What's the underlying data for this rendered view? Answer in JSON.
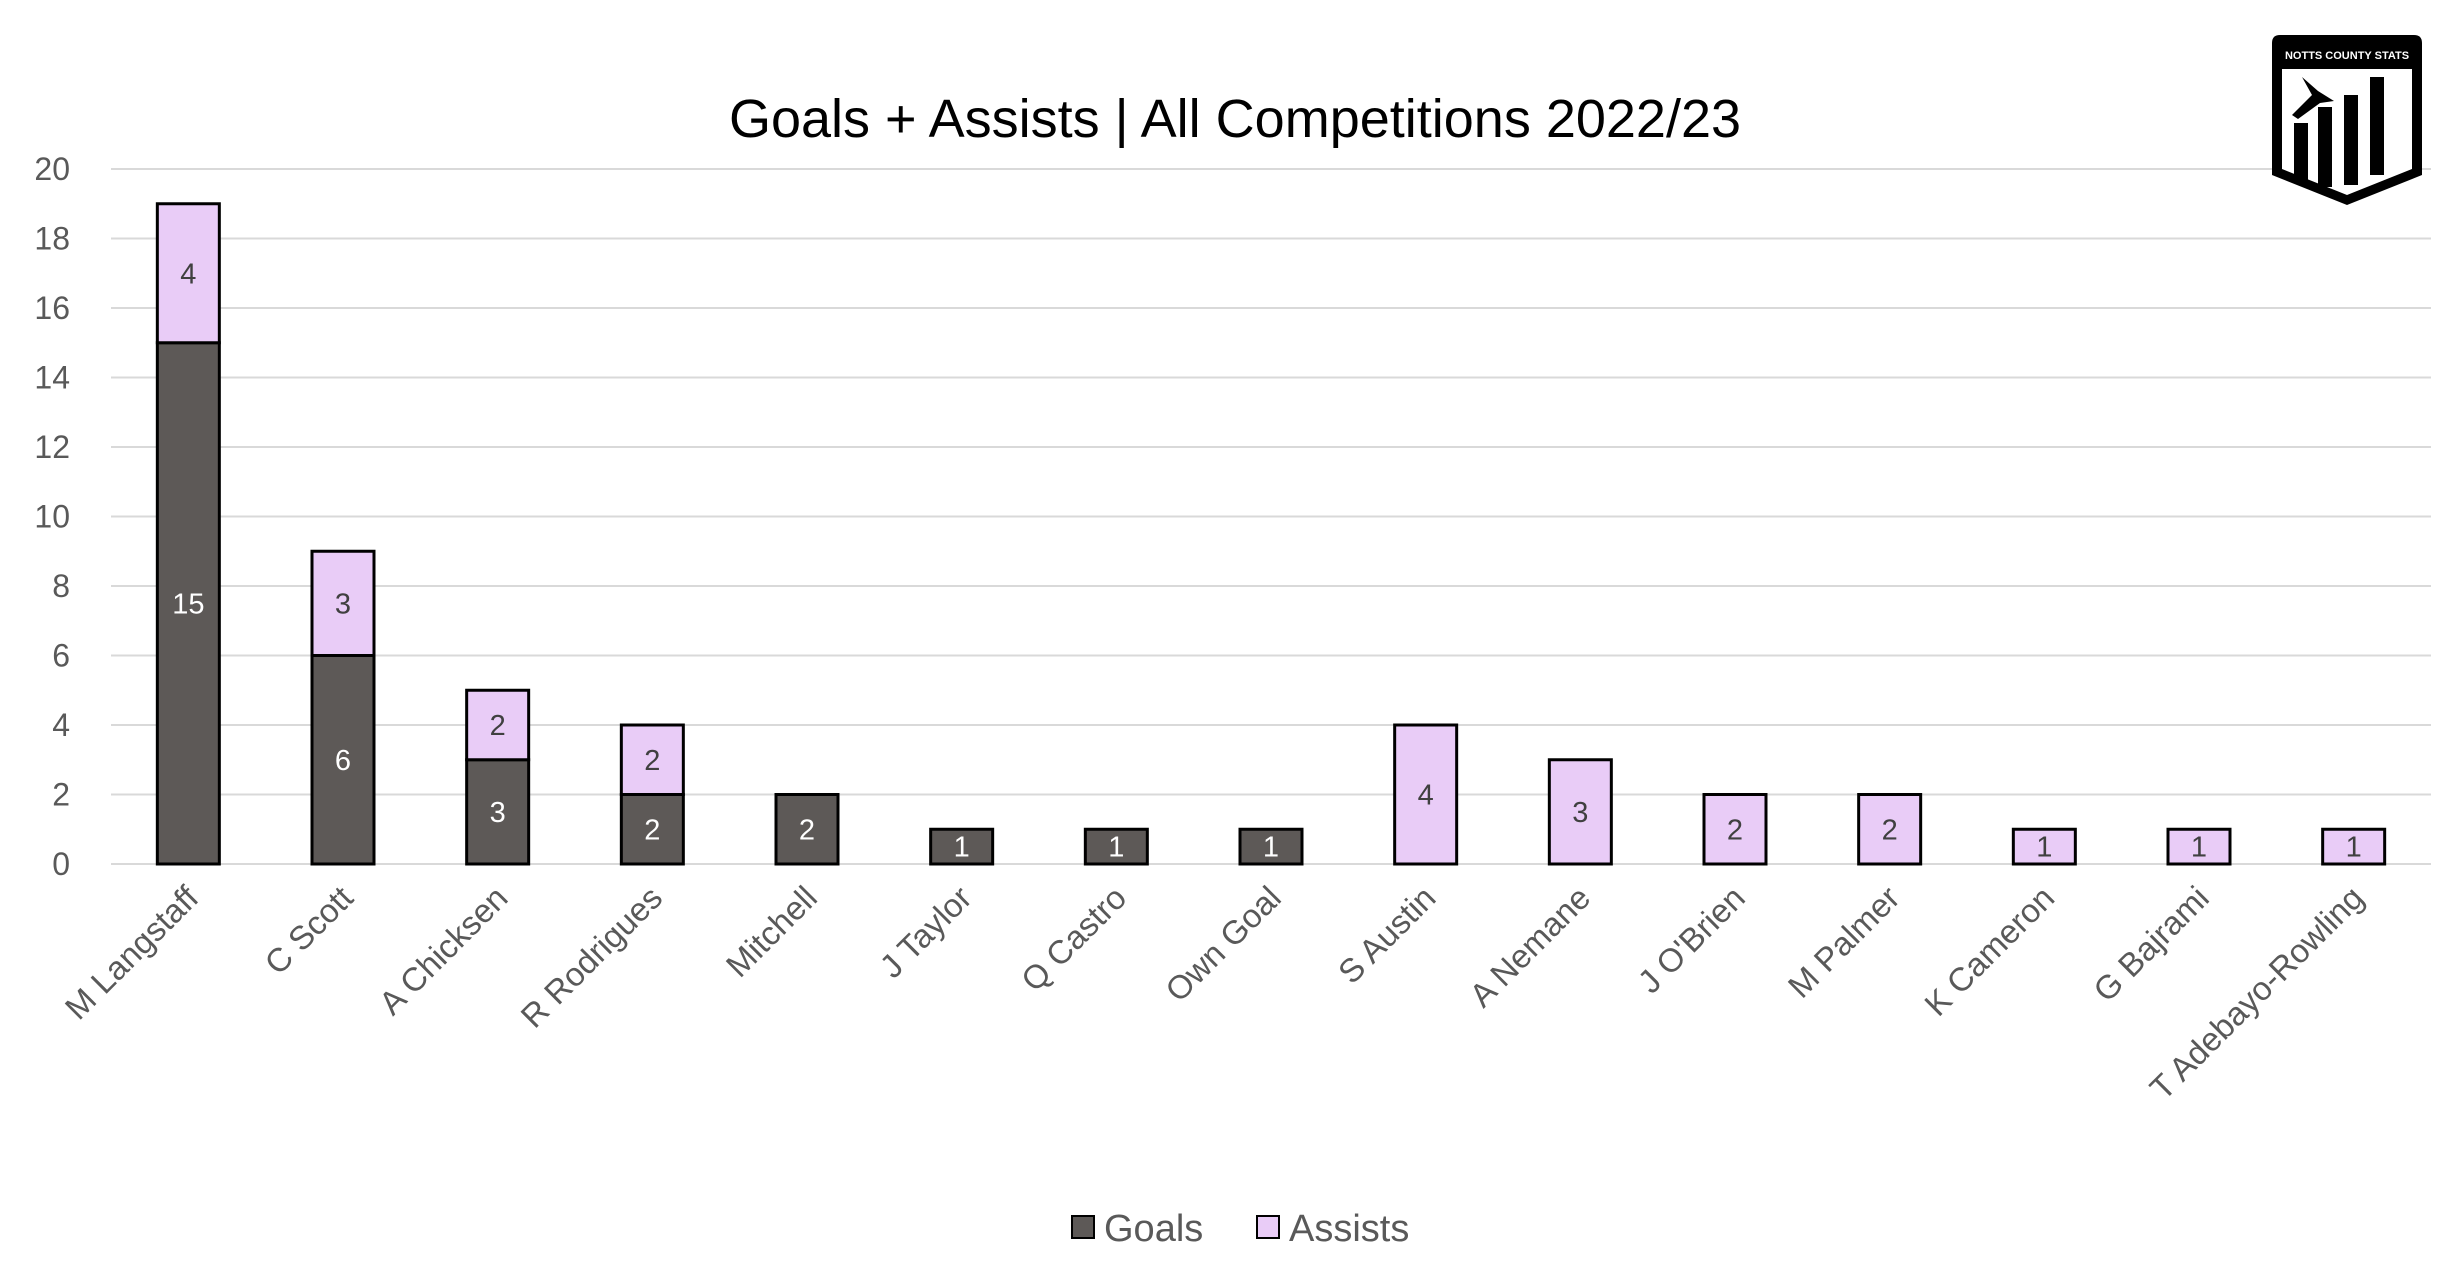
{
  "chart_data": {
    "type": "bar",
    "stacked": true,
    "title": "Goals + Assists | All Competitions 2022/23",
    "xlabel": "",
    "ylabel": "",
    "ylim": [
      0,
      20
    ],
    "yticks": [
      0,
      2,
      4,
      6,
      8,
      10,
      12,
      14,
      16,
      18,
      20
    ],
    "grid": true,
    "legend_position": "bottom",
    "categories": [
      "M Langstaff",
      "C Scott",
      "A Chicksen",
      "R Rodrigues",
      "Mitchell",
      "J Taylor",
      "Q Castro",
      "Own Goal",
      "S Austin",
      "A Nemane",
      "J O'Brien",
      "M Palmer",
      "K Cameron",
      "G Bajrami",
      "T Adebayo-Rowling"
    ],
    "series": [
      {
        "name": "Goals",
        "color": "#5d5957",
        "label_color": "#ffffff",
        "values": [
          15,
          6,
          3,
          2,
          2,
          1,
          1,
          1,
          0,
          0,
          0,
          0,
          0,
          0,
          0
        ]
      },
      {
        "name": "Assists",
        "color": "#e9ccf7",
        "label_color": "#404040",
        "values": [
          4,
          3,
          2,
          2,
          0,
          0,
          0,
          0,
          4,
          3,
          2,
          2,
          1,
          1,
          1
        ]
      }
    ]
  },
  "logo": {
    "text": "NOTTS COUNTY STATS"
  }
}
